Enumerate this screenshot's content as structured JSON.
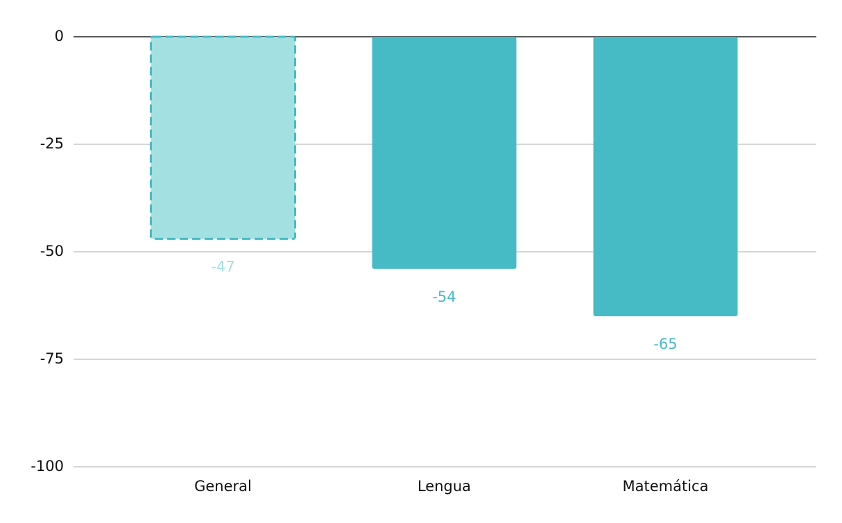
{
  "chart_data": {
    "type": "bar",
    "categories": [
      "General",
      "Lengua",
      "Matemática"
    ],
    "values": [
      -47,
      -54,
      -65
    ],
    "colors": [
      "#a3e0e2",
      "#47bbc5",
      "#47bbc5"
    ],
    "dashed": [
      true,
      false,
      false
    ],
    "dash_color": "#47bbc5",
    "ylim": [
      -100,
      0
    ],
    "yticks": [
      0,
      -25,
      -50,
      -75,
      -100
    ],
    "grid": true
  }
}
